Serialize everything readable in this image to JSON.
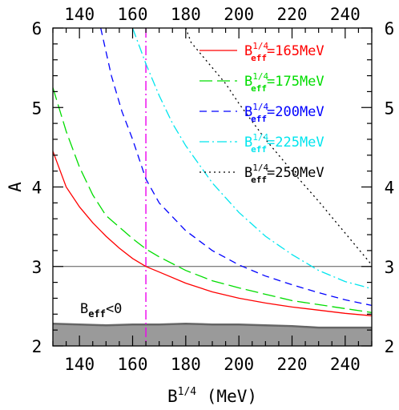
{
  "chart_data": {
    "type": "line",
    "xlabel": "B",
    "xlabel_sup": "1/4",
    "xlabel_unit": "(MeV)",
    "ylabel": "A",
    "xlim": [
      130,
      250
    ],
    "ylim": [
      2,
      6
    ],
    "x_ticks": [
      "140",
      "160",
      "180",
      "200",
      "220",
      "240"
    ],
    "y_ticks": [
      "2",
      "3",
      "4",
      "5",
      "6"
    ],
    "x_tick_values": [
      140,
      160,
      180,
      200,
      220,
      240
    ],
    "y_tick_values": [
      2,
      3,
      4,
      5,
      6
    ],
    "series": [
      {
        "name": "B_eff^{1/4}=165MeV",
        "label_base": "B",
        "label_sub": "eff",
        "label_sup": "1/4",
        "label_tail": "=165MeV",
        "color": "#ff0000",
        "dash": "",
        "x": [
          130,
          135,
          140,
          145,
          150,
          155,
          160,
          165,
          170,
          180,
          190,
          200,
          210,
          220,
          230,
          240,
          250
        ],
        "y": [
          4.45,
          4.0,
          3.75,
          3.55,
          3.38,
          3.23,
          3.1,
          3.0,
          2.93,
          2.79,
          2.68,
          2.6,
          2.54,
          2.49,
          2.45,
          2.41,
          2.38
        ]
      },
      {
        "name": "B_eff^{1/4}=175MeV",
        "label_base": "B",
        "label_sub": "eff",
        "label_sup": "1/4",
        "label_tail": "=175MeV",
        "color": "#00dd00",
        "dash": "16 6",
        "x": [
          130,
          135,
          140,
          145,
          150,
          160,
          165,
          170,
          180,
          190,
          200,
          210,
          220,
          230,
          240,
          250
        ],
        "y": [
          5.25,
          4.7,
          4.25,
          3.9,
          3.64,
          3.35,
          3.22,
          3.12,
          2.95,
          2.82,
          2.73,
          2.65,
          2.57,
          2.52,
          2.47,
          2.42
        ]
      },
      {
        "name": "B_eff^{1/4}=200MeV",
        "label_base": "B",
        "label_sub": "eff",
        "label_sup": "1/4",
        "label_tail": "=200MeV",
        "color": "#0000ff",
        "dash": "9 6",
        "x": [
          148,
          152,
          156,
          160,
          165,
          170,
          180,
          190,
          200,
          210,
          220,
          230,
          240,
          250
        ],
        "y": [
          6.0,
          5.4,
          4.95,
          4.6,
          4.1,
          3.8,
          3.45,
          3.2,
          3.02,
          2.88,
          2.77,
          2.67,
          2.58,
          2.51
        ]
      },
      {
        "name": "B_eff^{1/4}=225MeV",
        "label_base": "B",
        "label_sub": "eff",
        "label_sup": "1/4",
        "label_tail": "=225MeV",
        "color": "#00e5ee",
        "dash": "12 4 2 4",
        "x": [
          160,
          165,
          170,
          175,
          180,
          190,
          200,
          210,
          220,
          230,
          240,
          250
        ],
        "y": [
          6.0,
          5.55,
          5.15,
          4.8,
          4.52,
          4.05,
          3.68,
          3.38,
          3.15,
          2.95,
          2.81,
          2.72
        ]
      },
      {
        "name": "B_eff^{1/4}=250MeV",
        "label_base": "B",
        "label_sub": "eff",
        "label_sup": "1/4",
        "label_tail": "=250MeV",
        "color": "#000000",
        "dash": "2 4",
        "x": [
          180,
          182,
          185,
          190,
          195,
          200,
          210,
          220,
          230,
          240,
          250
        ],
        "y": [
          6.0,
          5.82,
          5.7,
          5.5,
          5.3,
          5.05,
          4.6,
          4.2,
          3.82,
          3.42,
          3.02
        ]
      }
    ],
    "reference_lines": [
      {
        "axis": "y",
        "value": 3,
        "color": "#555555",
        "style": "solid"
      },
      {
        "axis": "x",
        "value": 165,
        "color": "#ee00ee",
        "style": "dash-dot"
      }
    ],
    "shaded_region": {
      "label": "B_eff<0",
      "label_base": "B",
      "label_sub": "eff",
      "label_tail": "<0",
      "fill": "#9a9a9a",
      "edge": "#666666",
      "x": [
        130,
        140,
        150,
        160,
        170,
        180,
        190,
        200,
        210,
        220,
        230,
        240,
        250
      ],
      "y_upper": [
        2.28,
        2.27,
        2.26,
        2.27,
        2.27,
        2.28,
        2.27,
        2.27,
        2.26,
        2.25,
        2.23,
        2.23,
        2.23
      ]
    },
    "legend_position": "top-right",
    "grid": false
  }
}
